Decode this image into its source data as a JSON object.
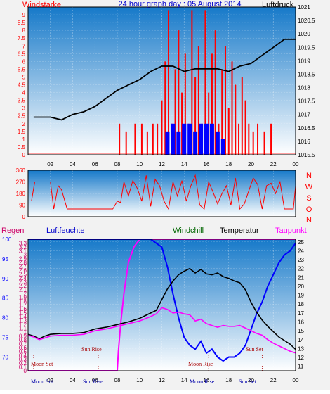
{
  "title": "24 hour graph day : 05 August 2014",
  "colors": {
    "wind": "#ff0000",
    "gust_bar": "#0000ff",
    "pressure": "#000000",
    "humidity": "#0000ff",
    "rain": "#cc0066",
    "windchill": "#006600",
    "temperature": "#000000",
    "dewpoint": "#ff00ff",
    "astro": "#aa0000",
    "bg_top": "#1a7fd0",
    "bg_bottom": "#ffffff"
  },
  "chart_data": [
    {
      "type": "line",
      "left_label": "Windstarke",
      "right_label": "Luftdruck",
      "x_ticks": [
        "02",
        "04",
        "06",
        "08",
        "10",
        "12",
        "14",
        "16",
        "18",
        "20",
        "22",
        "00"
      ],
      "y_left_ticks": [
        "0",
        "0.5",
        "1",
        "1.5",
        "2",
        "2.5",
        "3",
        "3.5",
        "4",
        "4.5",
        "5",
        "5.5",
        "6",
        "6.5",
        "7",
        "7.5",
        "8",
        "8.5",
        "9"
      ],
      "y_right_ticks": [
        "1015.5",
        "1016",
        "1016.5",
        "1017",
        "1017.5",
        "1018",
        "1018.5",
        "1019",
        "1019.5",
        "1020",
        "1020.5",
        "1021"
      ],
      "ylim_left": [
        0,
        9.5
      ],
      "ylim_right": [
        1015.5,
        1021
      ],
      "series": [
        {
          "name": "Luftdruck",
          "axis": "right",
          "x": [
            0.5,
            1,
            2,
            3,
            4,
            5,
            6,
            7,
            8,
            9,
            10,
            11,
            12,
            13,
            14,
            15,
            16,
            17,
            18,
            19,
            20,
            21,
            22,
            23,
            23.5,
            24
          ],
          "y": [
            1016.9,
            1016.9,
            1016.9,
            1016.8,
            1017.0,
            1017.1,
            1017.3,
            1017.6,
            1017.9,
            1018.1,
            1018.3,
            1018.6,
            1018.8,
            1018.8,
            1018.6,
            1018.7,
            1018.7,
            1018.7,
            1018.6,
            1018.8,
            1018.9,
            1019.2,
            1019.5,
            1019.8,
            1019.8,
            1019.8
          ]
        }
      ],
      "wind_bars": {
        "x": [
          8.2,
          8.8,
          9.6,
          10.2,
          10.7,
          11.2,
          11.6,
          12.0,
          12.3,
          12.6,
          12.9,
          13.2,
          13.5,
          13.8,
          14.1,
          14.4,
          14.7,
          15.0,
          15.3,
          15.6,
          15.9,
          16.2,
          16.5,
          16.8,
          17.1,
          17.4,
          17.7,
          18.0,
          18.3,
          18.6,
          18.9,
          19.2,
          19.5,
          19.8,
          20.2,
          20.6,
          21.2,
          21.8
        ],
        "y": [
          2,
          1.5,
          2,
          2,
          1.5,
          2,
          2,
          3.5,
          6,
          9.3,
          2,
          5.5,
          8,
          4,
          6.5,
          2,
          9.3,
          5,
          7,
          2,
          9.3,
          4,
          6.5,
          8,
          2,
          5.5,
          7,
          3,
          6,
          4.5,
          2,
          5,
          3.5,
          2,
          1.5,
          2,
          1.5,
          2
        ]
      },
      "gust_bars": {
        "x": [
          12.5,
          13.0,
          13.5,
          14.0,
          14.5,
          15.0,
          15.5,
          16.0,
          16.5,
          17.0,
          17.5
        ],
        "y": [
          1.5,
          2,
          1.5,
          2,
          2,
          1.5,
          2,
          2,
          2,
          1.5,
          1
        ]
      }
    },
    {
      "type": "line",
      "right_labels": [
        "N",
        "W",
        "S",
        "O",
        "N"
      ],
      "y_ticks": [
        "0",
        "90",
        "180",
        "270",
        "360"
      ],
      "ylim": [
        0,
        360
      ],
      "series": [
        {
          "name": "Windrichtung",
          "x": [
            0.3,
            0.6,
            1,
            1.5,
            2,
            2.3,
            2.7,
            3,
            3.5,
            4,
            5,
            6,
            7,
            7.6,
            8,
            8.3,
            8.6,
            9,
            9.4,
            9.8,
            10.2,
            10.6,
            11,
            11.4,
            11.8,
            12.2,
            12.6,
            13,
            13.4,
            13.8,
            14.2,
            14.6,
            15,
            15.4,
            15.8,
            16.2,
            16.6,
            17,
            17.4,
            17.8,
            18.2,
            18.6,
            19,
            19.4,
            19.8,
            20.2,
            20.6,
            21,
            21.4,
            21.8,
            22.2,
            22.6,
            23,
            23.4,
            23.8,
            24
          ],
          "y": [
            120,
            270,
            270,
            270,
            270,
            60,
            240,
            210,
            60,
            60,
            60,
            60,
            60,
            60,
            120,
            110,
            270,
            160,
            280,
            220,
            120,
            320,
            80,
            290,
            240,
            120,
            60,
            270,
            160,
            280,
            120,
            240,
            320,
            90,
            60,
            270,
            190,
            100,
            180,
            240,
            90,
            300,
            60,
            100,
            200,
            300,
            250,
            60,
            240,
            260,
            180,
            270,
            60,
            60,
            60,
            240
          ]
        }
      ]
    },
    {
      "type": "line",
      "labels": {
        "rain": "Regen",
        "humidity": "Luftfeuchte",
        "windchill": "Windchill",
        "temperature": "Temperatur",
        "dewpoint": "Taupunkt"
      },
      "x_ticks": [
        "02",
        "04",
        "06",
        "08",
        "10",
        "12",
        "14",
        "16",
        "18",
        "20",
        "22",
        "00"
      ],
      "y_rain_ticks": [
        "0",
        "0.1",
        "0.2",
        "0.3",
        "0.4",
        "0.5",
        "0.6",
        "0.7",
        "0.8",
        "0.9",
        "1",
        "1.1",
        "1.2",
        "1.3",
        "1.4",
        "1.5",
        "1.6",
        "1.7",
        "1.8",
        "1.9",
        "2",
        "2.1",
        "2.2",
        "2.3",
        "2.4",
        "2.5",
        "2.6",
        "2.7",
        "2.8",
        "2.9",
        "3",
        "3.1",
        "3.2",
        "3.3"
      ],
      "y_humidity_ticks": [
        "70",
        "75",
        "80",
        "85",
        "90",
        "95",
        "100"
      ],
      "y_temp_ticks": [
        "11",
        "12",
        "13",
        "14",
        "15",
        "16",
        "17",
        "18",
        "19",
        "20",
        "21",
        "22",
        "23",
        "24",
        "25"
      ],
      "ylim_rain": [
        0,
        3.4
      ],
      "ylim_humidity": [
        66.5,
        100
      ],
      "ylim_temp": [
        10.5,
        25.3
      ],
      "annotations": {
        "moon_set": "Moon Set",
        "sun_rise": "Sun Rise",
        "moon_rise": "Moon Rise",
        "sun_set": "Sun Set",
        "bottom_moon_set": "Moon Set",
        "bottom_sun_rise": "Sun Rise",
        "bottom_moon_rise": "Moon Rise",
        "bottom_sun_set": "Sun Set"
      },
      "astro_times": {
        "moon_set": 0.5,
        "sun_rise": 6.3,
        "moon_rise": 16.2,
        "sun_set": 21.0
      },
      "series": [
        {
          "name": "Regen",
          "axis": "rain",
          "x": [
            0,
            8.0,
            8.1,
            8.3,
            8.6,
            9.0,
            9.5,
            10.0,
            10.5,
            24
          ],
          "y": [
            0,
            0,
            0.5,
            1.2,
            2.0,
            2.8,
            3.2,
            3.4,
            3.4,
            3.4
          ]
        },
        {
          "name": "Luftfeuchte",
          "axis": "humidity",
          "x": [
            0,
            1,
            2,
            3,
            4,
            5,
            6,
            7,
            8,
            9,
            10,
            11,
            12,
            12.5,
            13,
            13.5,
            14,
            14.5,
            15,
            15.5,
            16,
            16.5,
            17,
            17.5,
            18,
            18.5,
            19,
            19.5,
            20,
            20.5,
            21,
            21.5,
            22,
            22.5,
            23,
            23.5,
            24
          ],
          "y": [
            100,
            100,
            100,
            100,
            100,
            100,
            100,
            100,
            100,
            100,
            100,
            100,
            98,
            93,
            86,
            80,
            75,
            73,
            72,
            74,
            71,
            72,
            70,
            69,
            70,
            70,
            71,
            73,
            77,
            81,
            84,
            88,
            91,
            94,
            96,
            97,
            99
          ]
        },
        {
          "name": "Temperatur",
          "axis": "temp",
          "x": [
            0,
            0.5,
            1,
            1.5,
            2,
            3,
            4,
            5,
            6,
            7,
            8,
            9,
            10,
            11,
            11.5,
            12,
            12.5,
            13,
            13.5,
            14,
            14.5,
            15,
            15.5,
            16,
            16.5,
            17,
            17.5,
            18,
            18.5,
            19,
            19.5,
            20,
            20.5,
            21,
            21.5,
            22,
            22.5,
            23,
            23.5,
            24
          ],
          "y": [
            14.6,
            14.4,
            14.1,
            14.4,
            14.6,
            14.7,
            14.7,
            14.8,
            15.2,
            15.4,
            15.7,
            16.0,
            16.4,
            17.0,
            17.3,
            18.5,
            19.7,
            20.6,
            21.3,
            21.7,
            22.0,
            21.5,
            21.9,
            21.4,
            21.3,
            21.5,
            21.1,
            20.9,
            20.6,
            20.4,
            19.6,
            18.2,
            17.1,
            16.2,
            15.5,
            14.9,
            14.3,
            13.9,
            13.5,
            12.9
          ]
        },
        {
          "name": "Taupunkt",
          "axis": "temp",
          "x": [
            0,
            0.5,
            1,
            1.5,
            2,
            3,
            4,
            5,
            6,
            7,
            8,
            9,
            10,
            11,
            11.5,
            12,
            12.5,
            13,
            13.5,
            14,
            14.5,
            15,
            15.5,
            16,
            16.5,
            17,
            17.5,
            18,
            18.5,
            19,
            19.5,
            20,
            20.5,
            21,
            21.5,
            22,
            22.5,
            23,
            23.5,
            24
          ],
          "y": [
            14.5,
            14.3,
            14.0,
            14.2,
            14.4,
            14.5,
            14.5,
            14.6,
            15.0,
            15.2,
            15.5,
            15.8,
            16.1,
            16.6,
            16.9,
            17.6,
            17.4,
            17.0,
            17.1,
            16.9,
            16.8,
            16.1,
            16.3,
            15.8,
            15.6,
            15.4,
            15.6,
            15.5,
            15.5,
            15.6,
            15.3,
            15.0,
            14.7,
            14.5,
            14.0,
            13.6,
            13.3,
            13.0,
            12.7,
            12.5
          ]
        },
        {
          "name": "Windchill",
          "axis": "temp",
          "x": [],
          "y": []
        }
      ]
    }
  ]
}
